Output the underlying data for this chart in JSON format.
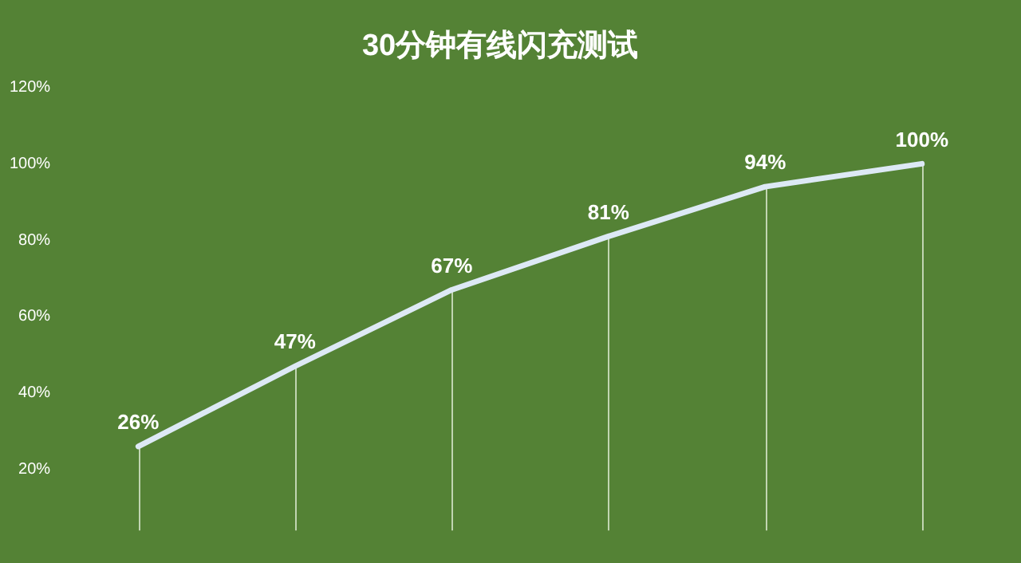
{
  "chart_data": {
    "type": "line",
    "title": "30分钟有线闪充测试",
    "categories": [
      null,
      null,
      null,
      null,
      null,
      null
    ],
    "series": [
      {
        "color": "#dde9f5",
        "values": [
          26,
          47,
          67,
          81,
          94,
          100
        ],
        "value_labels": [
          "26%",
          "47%",
          "67%",
          "81%",
          "94%",
          "100%"
        ]
      }
    ],
    "ylim": [
      4,
      120
    ],
    "yticks": [
      {
        "value": 20,
        "label": "20%"
      },
      {
        "value": 40,
        "label": "40%"
      },
      {
        "value": 60,
        "label": "60%"
      },
      {
        "value": 80,
        "label": "80%"
      },
      {
        "value": 100,
        "label": "100%"
      },
      {
        "value": 120,
        "label": "120%"
      }
    ],
    "grid": false,
    "legend": false,
    "marker": "none",
    "line_style": "solid"
  }
}
